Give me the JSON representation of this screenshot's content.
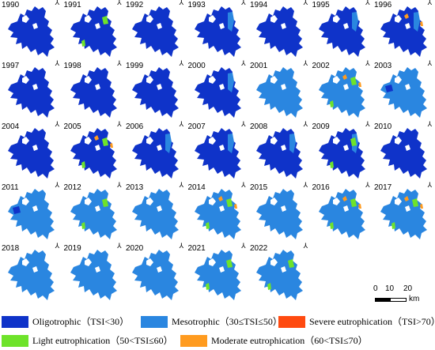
{
  "maps": [
    {
      "year": "1990",
      "state": "oligo"
    },
    {
      "year": "1991",
      "state": "oligo",
      "green": true
    },
    {
      "year": "1992",
      "state": "oligo"
    },
    {
      "year": "1993",
      "state": "oligo",
      "meso_patch": true
    },
    {
      "year": "1994",
      "state": "oligo"
    },
    {
      "year": "1995",
      "state": "oligo",
      "meso_patch": true
    },
    {
      "year": "1996",
      "state": "oligo",
      "meso_patch": true,
      "orange": true
    },
    {
      "year": "1997",
      "state": "oligo"
    },
    {
      "year": "1998",
      "state": "oligo"
    },
    {
      "year": "1999",
      "state": "oligo"
    },
    {
      "year": "2000",
      "state": "oligo",
      "meso_patch": true
    },
    {
      "year": "2001",
      "state": "meso"
    },
    {
      "year": "2002",
      "state": "meso",
      "green": true,
      "orange": true
    },
    {
      "year": "2003",
      "state": "meso",
      "oligo_patch": true
    },
    {
      "year": "2004",
      "state": "oligo"
    },
    {
      "year": "2005",
      "state": "oligo",
      "green": true,
      "orange": true
    },
    {
      "year": "2006",
      "state": "oligo",
      "meso_patch": true
    },
    {
      "year": "2007",
      "state": "oligo",
      "meso_patch": true
    },
    {
      "year": "2008",
      "state": "oligo",
      "meso_patch": true
    },
    {
      "year": "2009",
      "state": "oligo",
      "meso_patch": true,
      "green": true
    },
    {
      "year": "2010",
      "state": "oligo"
    },
    {
      "year": "2011",
      "state": "meso",
      "oligo_patch": true
    },
    {
      "year": "2012",
      "state": "meso",
      "green": true
    },
    {
      "year": "2013",
      "state": "meso"
    },
    {
      "year": "2014",
      "state": "meso",
      "green": true,
      "orange": true
    },
    {
      "year": "2015",
      "state": "meso"
    },
    {
      "year": "2016",
      "state": "meso",
      "green": true,
      "orange": true
    },
    {
      "year": "2017",
      "state": "meso",
      "green": true,
      "orange": true
    },
    {
      "year": "2018",
      "state": "meso"
    },
    {
      "year": "2019",
      "state": "meso"
    },
    {
      "year": "2020",
      "state": "meso"
    },
    {
      "year": "2021",
      "state": "meso",
      "green": true
    },
    {
      "year": "2022",
      "state": "meso",
      "green": true
    }
  ],
  "north_symbol": "⅄",
  "scale": {
    "labels": [
      "0",
      "10",
      "20"
    ],
    "unit": "km"
  },
  "legend": [
    {
      "label": "Oligotrophic（TSI<30）",
      "color": "#0f33c9"
    },
    {
      "label": "Mesotrophic（30≤TSI≤50）",
      "color": "#2a86e0"
    },
    {
      "label": "Severe eutrophication（TSI>70）",
      "color": "#ff4a10"
    },
    {
      "label": "Light eutrophication（50<TSI≤60）",
      "color": "#6ee32a"
    },
    {
      "label": "Moderate eutrophication（60<TSI≤70）",
      "color": "#ff9b1f"
    }
  ],
  "colors": {
    "oligo": "#0f33c9",
    "meso": "#2a86e0",
    "light": "#6ee32a",
    "moderate": "#ff9b1f",
    "severe": "#ff4a10"
  }
}
